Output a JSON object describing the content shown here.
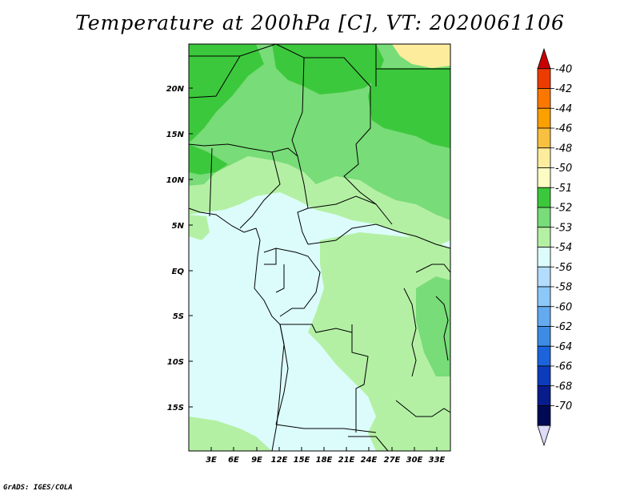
{
  "title": "Temperature at 200hPa [C], VT: 2020061106",
  "credit": "GrADS: IGES/COLA",
  "lat_labels": [
    "20N",
    "15N",
    "10N",
    "5N",
    "EQ",
    "5S",
    "10S",
    "15S"
  ],
  "lon_labels": [
    "3E",
    "6E",
    "9E",
    "12E",
    "15E",
    "18E",
    "21E",
    "24E",
    "27E",
    "30E",
    "33E"
  ],
  "colorbar": {
    "labels": [
      "-40",
      "-42",
      "-44",
      "-46",
      "-48",
      "-50",
      "-51",
      "-52",
      "-53",
      "-54",
      "-56",
      "-58",
      "-60",
      "-62",
      "-64",
      "-66",
      "-68",
      "-70"
    ],
    "colors": [
      "#c80000",
      "#ec3c00",
      "#fa7800",
      "#fca000",
      "#f8c040",
      "#fcec9c",
      "#fcfcc4",
      "#3cc83c",
      "#78dc78",
      "#b4f0a4",
      "#dcfcfc",
      "#b4dcfc",
      "#8cc8f8",
      "#64aaf0",
      "#3c8ce6",
      "#1c64dc",
      "#0c3cbc",
      "#081c8c",
      "#000a54",
      "#dcdcf8"
    ]
  },
  "legend_colors": {
    "bg_lightcyan": "#dcfcfc",
    "pale_green": "#b4f0a4",
    "mid_green": "#78dc78",
    "dark_green": "#3cc83c",
    "pale_yellow": "#fcec9c"
  }
}
